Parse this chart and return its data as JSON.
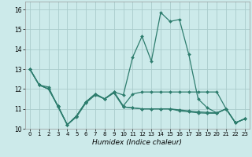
{
  "xlabel": "Humidex (Indice chaleur)",
  "bg_color": "#cceaea",
  "grid_color": "#aacccc",
  "line_color": "#2e7d6e",
  "xlim": [
    -0.5,
    23.5
  ],
  "ylim": [
    10.0,
    16.4
  ],
  "yticks": [
    10,
    11,
    12,
    13,
    14,
    15,
    16
  ],
  "xticks": [
    0,
    1,
    2,
    3,
    4,
    5,
    6,
    7,
    8,
    9,
    10,
    11,
    12,
    13,
    14,
    15,
    16,
    17,
    18,
    19,
    20,
    21,
    22,
    23
  ],
  "lines": [
    [
      13.0,
      12.2,
      12.1,
      11.1,
      10.2,
      10.6,
      11.3,
      11.7,
      11.5,
      11.8,
      11.1,
      11.05,
      11.0,
      11.0,
      11.0,
      11.0,
      10.95,
      10.9,
      10.85,
      10.82,
      10.8,
      11.0,
      10.3,
      10.5
    ],
    [
      13.0,
      12.2,
      12.0,
      11.15,
      10.2,
      10.65,
      11.35,
      11.75,
      11.5,
      11.85,
      11.1,
      11.05,
      11.0,
      11.0,
      11.0,
      11.0,
      10.9,
      10.85,
      10.8,
      10.78,
      10.78,
      11.0,
      10.3,
      10.5
    ],
    [
      13.0,
      12.2,
      12.0,
      11.15,
      10.2,
      10.65,
      11.35,
      11.75,
      11.5,
      11.85,
      11.15,
      11.75,
      11.85,
      11.85,
      11.85,
      11.85,
      11.85,
      11.85,
      11.85,
      11.85,
      11.85,
      11.0,
      10.3,
      10.5
    ],
    [
      13.0,
      12.2,
      12.0,
      11.15,
      10.2,
      10.65,
      11.35,
      11.75,
      11.5,
      11.85,
      11.7,
      13.6,
      14.65,
      13.4,
      15.85,
      15.4,
      15.5,
      13.75,
      11.5,
      11.05,
      10.8,
      11.0,
      10.3,
      10.5
    ]
  ]
}
